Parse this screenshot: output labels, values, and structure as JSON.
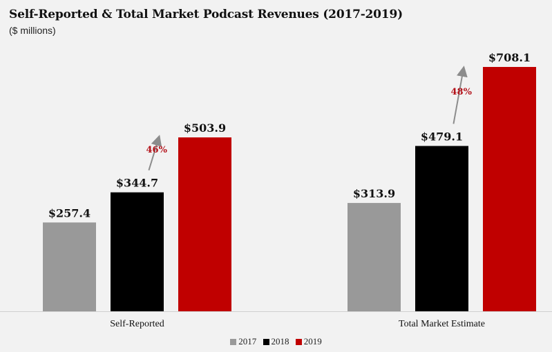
{
  "chart_data": {
    "type": "bar",
    "title": "Self-Reported & Total Market Podcast Revenues (2017-2019)",
    "subtitle": "($ millions)",
    "categories": [
      "Self-Reported",
      "Total Market Estimate"
    ],
    "series": [
      {
        "name": "2017",
        "color": "#999999",
        "values": [
          257.4,
          313.9
        ],
        "labels": [
          "$257.4",
          "$313.9"
        ]
      },
      {
        "name": "2018",
        "color": "#000000",
        "values": [
          344.7,
          479.1
        ],
        "labels": [
          "$344.7",
          "$479.1"
        ]
      },
      {
        "name": "2019",
        "color": "#c00000",
        "values": [
          503.9,
          708.1
        ],
        "labels": [
          "$503.9",
          "$708.1"
        ]
      }
    ],
    "annotations": [
      {
        "category": "Self-Reported",
        "text": "46%"
      },
      {
        "category": "Total Market Estimate",
        "text": "48%"
      }
    ],
    "ylim": [
      0,
      708.1
    ],
    "grid": false,
    "legend_position": "bottom"
  }
}
